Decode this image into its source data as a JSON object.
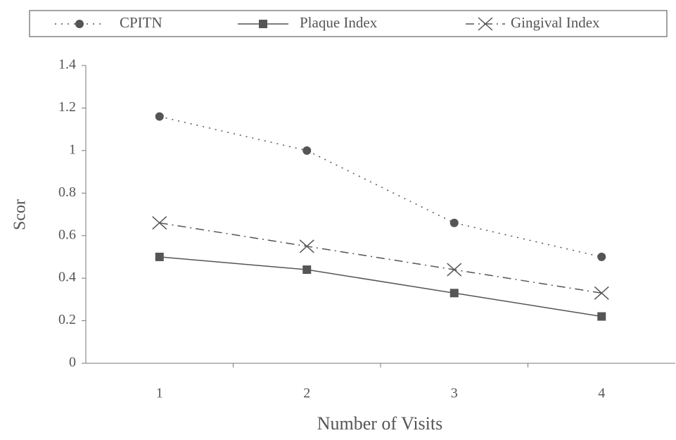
{
  "chart_data": {
    "type": "line",
    "xlabel": "Number of Visits",
    "ylabel": "Scor",
    "categories": [
      "1",
      "2",
      "3",
      "4"
    ],
    "series": [
      {
        "name": "CPITN",
        "color": "#555555",
        "marker": "circle",
        "line_style": "dotted",
        "values": [
          1.16,
          1.0,
          0.66,
          0.5
        ]
      },
      {
        "name": "Plaque Index",
        "color": "#555555",
        "marker": "square",
        "line_style": "solid",
        "values": [
          0.5,
          0.44,
          0.33,
          0.22
        ]
      },
      {
        "name": "Gingival Index",
        "color": "#555555",
        "marker": "x",
        "line_style": "dashdot",
        "values": [
          0.66,
          0.55,
          0.44,
          0.33
        ]
      }
    ],
    "ylim": [
      0,
      1.4
    ],
    "yticks": [
      0,
      0.2,
      0.4,
      0.6,
      0.8,
      1,
      1.2,
      1.4
    ],
    "legend": "top"
  }
}
